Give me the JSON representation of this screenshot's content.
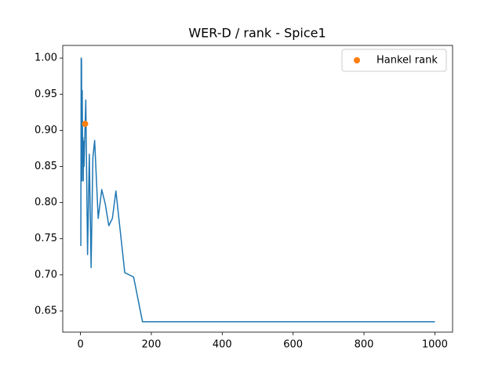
{
  "chart_data": {
    "type": "line",
    "title": "WER-D / rank - Spice1",
    "xlim": [
      -50,
      1050
    ],
    "ylim": [
      0.6207,
      1.0175
    ],
    "xticks": [
      0,
      200,
      400,
      600,
      800,
      1000
    ],
    "yticks": [
      0.65,
      {
        "value": 0.7,
        "label": "0.70"
      },
      0.75,
      {
        "value": 0.8,
        "label": "0.80"
      },
      0.85,
      {
        "value": 0.9,
        "label": "0.90"
      },
      0.95,
      {
        "value": 1.0,
        "label": "1.00"
      }
    ],
    "legend": "upper right",
    "series": [
      {
        "color": "#1f77b4",
        "mode": "line",
        "x": [
          1,
          2,
          3,
          4,
          5,
          6,
          7,
          8,
          9,
          10,
          15,
          20,
          25,
          30,
          35,
          40,
          50,
          60,
          70,
          80,
          90,
          100,
          125,
          150,
          175,
          1000
        ],
        "values": [
          0.74,
          1.0,
          0.998,
          0.83,
          0.955,
          0.86,
          0.89,
          0.83,
          0.885,
          0.85,
          0.942,
          0.728,
          0.867,
          0.71,
          0.862,
          0.886,
          0.778,
          0.818,
          0.798,
          0.768,
          0.778,
          0.816,
          0.703,
          0.697,
          0.635,
          0.635
        ]
      },
      {
        "name": "Hankel rank",
        "color": "#ff7f0e",
        "mode": "markers",
        "x": [
          13
        ],
        "values": [
          0.909
        ]
      }
    ]
  }
}
